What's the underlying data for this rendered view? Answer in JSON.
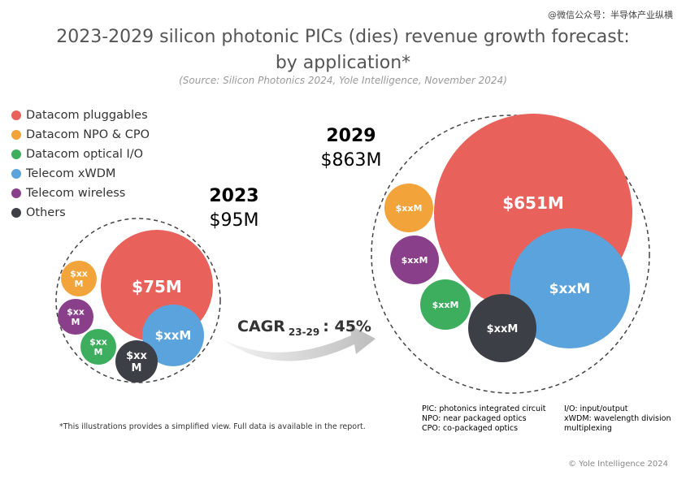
{
  "watermark": "@微信公众号：半导体产业纵横",
  "header": {
    "title_line1": "2023-2029 silicon photonic PICs (dies) revenue growth forecast:",
    "title_line2": "by application*",
    "source": "(Source: Silicon Photonics 2024, Yole Intelligence, November 2024)"
  },
  "chart_data": {
    "type": "bubble",
    "legend": [
      {
        "name": "Datacom pluggables",
        "color": "#e8615a"
      },
      {
        "name": "Datacom NPO & CPO",
        "color": "#f2a33a"
      },
      {
        "name": "Datacom optical I/O",
        "color": "#3dae5e"
      },
      {
        "name": "Telecom xWDM",
        "color": "#5ba3dc"
      },
      {
        "name": "Telecom wireless",
        "color": "#8a3f8a"
      },
      {
        "name": "Others",
        "color": "#3c3f46"
      }
    ],
    "groups": [
      {
        "year": "2023",
        "total": "$95M",
        "bubbles": [
          {
            "series": "Datacom pluggables",
            "label": "$75M"
          },
          {
            "series": "Telecom xWDM",
            "label": "$xxM"
          },
          {
            "series": "Datacom NPO & CPO",
            "label": "$xx M"
          },
          {
            "series": "Telecom wireless",
            "label": "$xx M"
          },
          {
            "series": "Datacom optical I/O",
            "label": "$xx M"
          },
          {
            "series": "Others",
            "label": "$xx M"
          }
        ]
      },
      {
        "year": "2029",
        "total": "$863M",
        "bubbles": [
          {
            "series": "Datacom pluggables",
            "label": "$651M"
          },
          {
            "series": "Telecom xWDM",
            "label": "$xxM"
          },
          {
            "series": "Datacom NPO & CPO",
            "label": "$xxM"
          },
          {
            "series": "Telecom wireless",
            "label": "$xxM"
          },
          {
            "series": "Datacom optical I/O",
            "label": "$xxM"
          },
          {
            "series": "Others",
            "label": "$xxM"
          }
        ]
      }
    ],
    "cagr": {
      "prefix": "CAGR",
      "sub": "23-29",
      "value": ": 45%"
    }
  },
  "notes": {
    "left": [
      "PIC: photonics integrated circuit",
      "NPO: near packaged optics",
      "CPO: co-packaged optics"
    ],
    "right": [
      "I/O: input/output",
      "xWDM: wavelength division",
      "multiplexing"
    ]
  },
  "footnote": "*This illustrations provides a simplified view. Full data is available in the report.",
  "copyright": "© Yole Intelligence 2024"
}
